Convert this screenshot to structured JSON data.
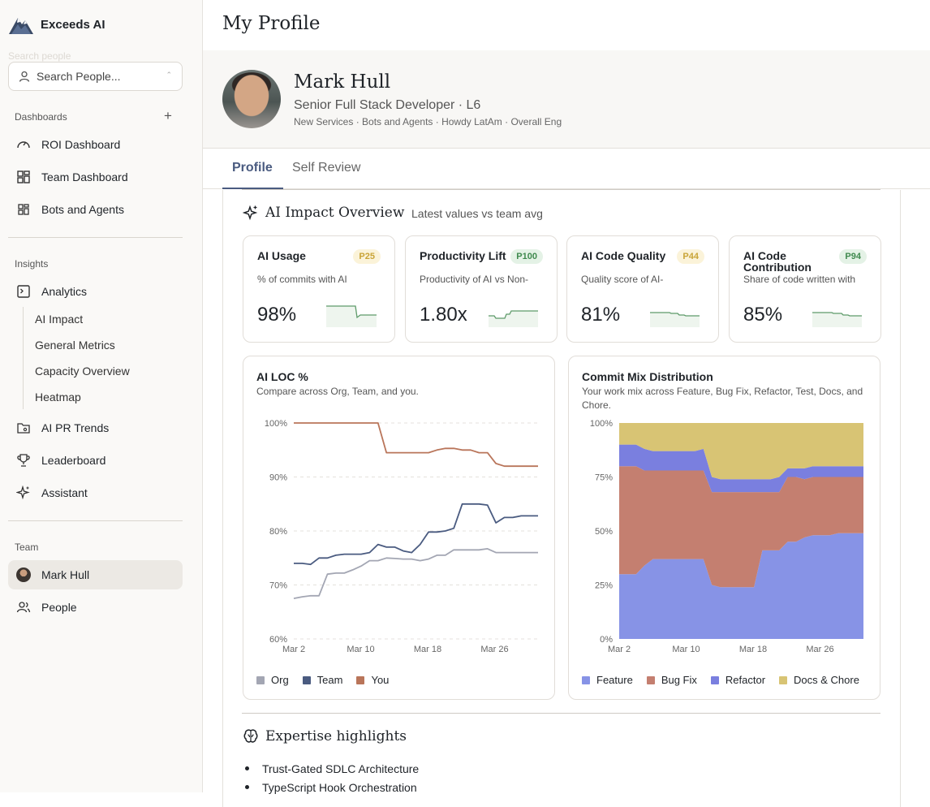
{
  "app": {
    "name": "Exceeds AI",
    "search_placeholder": "Search People...",
    "search_ghost": "Search people"
  },
  "sidebar": {
    "dashboards_label": "Dashboards",
    "dashboards": [
      {
        "label": "ROI Dashboard",
        "icon": "gauge-icon"
      },
      {
        "label": "Team Dashboard",
        "icon": "grid-icon"
      },
      {
        "label": "Bots and Agents",
        "icon": "grid-small-icon"
      }
    ],
    "insights_label": "Insights",
    "analytics_label": "Analytics",
    "analytics_sub": [
      "AI Impact",
      "General Metrics",
      "Capacity Overview",
      "Heatmap"
    ],
    "insights": [
      {
        "label": "AI PR Trends",
        "icon": "pr-folder-icon"
      },
      {
        "label": "Leaderboard",
        "icon": "trophy-icon"
      },
      {
        "label": "Assistant",
        "icon": "sparkle-icon"
      }
    ],
    "team_label": "Team",
    "team": [
      {
        "label": "Mark Hull",
        "icon": "avatar",
        "active": true
      },
      {
        "label": "People",
        "icon": "people-icon"
      }
    ]
  },
  "page": {
    "title": "My Profile"
  },
  "profile": {
    "name": "Mark Hull",
    "role": "Senior Full Stack Developer · L6",
    "teams": "New Services · Bots and Agents · Howdy LatAm · Overall Eng"
  },
  "tabs": [
    {
      "label": "Profile",
      "active": true
    },
    {
      "label": "Self Review",
      "active": false
    }
  ],
  "overview": {
    "title": "AI Impact Overview",
    "subtitle": "Latest values vs team avg"
  },
  "kpis": [
    {
      "title": "AI Usage",
      "badge": "P25",
      "badge_color": "#c9a437",
      "badge_bg": "#fbf3d9",
      "desc": "% of commits with AI",
      "value": "98%"
    },
    {
      "title": "Productivity Lift",
      "badge": "P100",
      "badge_color": "#3f8a4e",
      "badge_bg": "#e4f2e6",
      "desc": "Productivity of AI vs Non-",
      "value": "1.80x"
    },
    {
      "title": "AI Code Quality",
      "badge": "P44",
      "badge_color": "#c9a437",
      "badge_bg": "#fbf3d9",
      "desc": "Quality score of AI-",
      "value": "81%"
    },
    {
      "title": "AI Code Contribution",
      "badge": "P94",
      "badge_color": "#3f8a4e",
      "badge_bg": "#e4f2e6",
      "desc": "Share of code written with",
      "value": "85%"
    }
  ],
  "chart_data": [
    {
      "type": "line",
      "title": "AI LOC %",
      "subtitle": "Compare across Org, Team, and you.",
      "x_ticks": [
        "Mar 2",
        "Mar 10",
        "Mar 18",
        "Mar 26"
      ],
      "y_ticks": [
        "100%",
        "90%",
        "80%",
        "70%",
        "60%"
      ],
      "ylim": [
        60,
        100
      ],
      "grid": true,
      "legend": "bottom-left",
      "x": [
        0,
        1,
        2,
        3,
        4,
        5,
        6,
        7,
        8,
        9,
        10,
        11,
        12,
        13,
        14,
        15,
        16,
        17,
        18,
        19,
        20,
        21,
        22,
        23,
        24,
        25,
        26,
        27,
        28,
        29
      ],
      "series": [
        {
          "name": "Org",
          "color": "#a3a6b3",
          "values": [
            67.5,
            67.8,
            68.0,
            68.0,
            72.0,
            72.2,
            72.2,
            72.8,
            73.5,
            74.5,
            74.5,
            75.0,
            74.9,
            74.8,
            74.8,
            74.5,
            74.8,
            75.5,
            75.5,
            76.5,
            76.5,
            76.5,
            76.5,
            76.7,
            76.0,
            76.0,
            76.0,
            76.0,
            76.0,
            76.0
          ]
        },
        {
          "name": "Team",
          "color": "#4a5b80",
          "values": [
            74.0,
            74.0,
            73.8,
            75.0,
            75.0,
            75.5,
            75.7,
            75.7,
            75.7,
            76.0,
            77.5,
            77.0,
            77.0,
            76.3,
            76.0,
            77.5,
            79.8,
            79.8,
            80.0,
            80.5,
            85.0,
            85.0,
            85.0,
            84.8,
            81.5,
            82.5,
            82.5,
            82.8,
            82.8,
            82.8
          ]
        },
        {
          "name": "You",
          "color": "#b9755a",
          "values": [
            100,
            100,
            100,
            100,
            100,
            100,
            100,
            100,
            100,
            100,
            100,
            94.5,
            94.5,
            94.5,
            94.5,
            94.5,
            94.5,
            95.0,
            95.3,
            95.3,
            95.0,
            95.0,
            94.5,
            94.5,
            92.5,
            92.0,
            92.0,
            92.0,
            92.0,
            92.0
          ]
        }
      ]
    },
    {
      "type": "area",
      "stacked": true,
      "title": "Commit Mix Distribution",
      "subtitle": "Your work mix across Feature, Bug Fix, Refactor, Test, Docs, and Chore.",
      "x_ticks": [
        "Mar 2",
        "Mar 10",
        "Mar 18",
        "Mar 26"
      ],
      "y_ticks": [
        "100%",
        "75%",
        "50%",
        "25%",
        "0%"
      ],
      "ylim": [
        0,
        100
      ],
      "legend": "bottom-left",
      "x": [
        0,
        1,
        2,
        3,
        4,
        5,
        6,
        7,
        8,
        9,
        10,
        11,
        12,
        13,
        14,
        15,
        16,
        17,
        18,
        19,
        20,
        21,
        22,
        23,
        24,
        25,
        26,
        27,
        28,
        29
      ],
      "series": [
        {
          "name": "Feature",
          "color": "#8793e6",
          "values": [
            30,
            30,
            30,
            34,
            37,
            37,
            37,
            37,
            37,
            37,
            37,
            25,
            24,
            24,
            24,
            24,
            24,
            41,
            41,
            41,
            45,
            45,
            47,
            48,
            48,
            48,
            49,
            49,
            49,
            49
          ]
        },
        {
          "name": "Bug Fix",
          "color": "#c47f70",
          "values": [
            50,
            50,
            50,
            44,
            41,
            41,
            41,
            41,
            41,
            41,
            41,
            43,
            44,
            44,
            44,
            44,
            44,
            27,
            27,
            27,
            30,
            30,
            27,
            27,
            27,
            27,
            26,
            26,
            26,
            26
          ]
        },
        {
          "name": "Refactor",
          "color": "#7a7fdf",
          "values": [
            10,
            10,
            10,
            10,
            9,
            9,
            9,
            9,
            9,
            9,
            10,
            7,
            6,
            6,
            6,
            6,
            6,
            6,
            6,
            7,
            4,
            4,
            5,
            5,
            5,
            5,
            5,
            5,
            5,
            5
          ]
        },
        {
          "name": "Docs & Chore",
          "color": "#d8c474",
          "values": [
            10,
            10,
            10,
            12,
            13,
            13,
            13,
            13,
            13,
            13,
            12,
            25,
            26,
            26,
            26,
            26,
            26,
            26,
            26,
            25,
            21,
            21,
            21,
            20,
            20,
            20,
            20,
            20,
            20,
            20
          ]
        }
      ]
    }
  ],
  "expertise": {
    "title": "Expertise highlights",
    "items": [
      "Trust-Gated SDLC Architecture",
      "TypeScript Hook Orchestration"
    ]
  }
}
